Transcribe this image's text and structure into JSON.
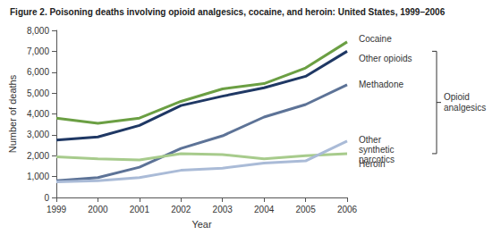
{
  "chart_data": {
    "type": "line",
    "title": "Figure 2. Poisoning deaths involving opioid analgesics, cocaine, and heroin: United States, 1999–2006",
    "x_label": "Year",
    "y_label": "Number of deaths",
    "categories": [
      "1999",
      "2000",
      "2001",
      "2002",
      "2003",
      "2004",
      "2005",
      "2006"
    ],
    "series": [
      {
        "name": "Cocaine",
        "color": "#6b9f43",
        "values": [
          3800,
          3550,
          3800,
          4600,
          5200,
          5450,
          6200,
          7450
        ]
      },
      {
        "name": "Other opioids",
        "color": "#1f3864",
        "values": [
          2750,
          2900,
          3450,
          4400,
          4850,
          5250,
          5800,
          7000
        ]
      },
      {
        "name": "Methadone",
        "color": "#5d7397",
        "values": [
          800,
          950,
          1450,
          2350,
          2950,
          3850,
          4450,
          5400
        ]
      },
      {
        "name": "Other synthetic narcotics",
        "color": "#a7cb8c",
        "values": [
          1950,
          1850,
          1800,
          2100,
          2050,
          1850,
          2000,
          2100
        ]
      },
      {
        "name": "Heroin",
        "color": "#aabbd7",
        "values": [
          750,
          800,
          950,
          1300,
          1400,
          1650,
          1750,
          2700
        ]
      }
    ],
    "annotations": [
      "Opioid analgesics"
    ],
    "ylim": [
      0,
      8000
    ],
    "yticks": [
      0,
      {
        "value": 1000,
        "label": "1,000"
      },
      {
        "value": 2000,
        "label": "2,000"
      },
      {
        "value": 3000,
        "label": "3,000"
      },
      {
        "value": 4000,
        "label": "4,000"
      },
      {
        "value": 5000,
        "label": "5,000"
      },
      {
        "value": 6000,
        "label": "6,000"
      },
      {
        "value": 7000,
        "label": "7,000"
      },
      {
        "value": 8000,
        "label": "8,000"
      }
    ],
    "grid": false
  }
}
